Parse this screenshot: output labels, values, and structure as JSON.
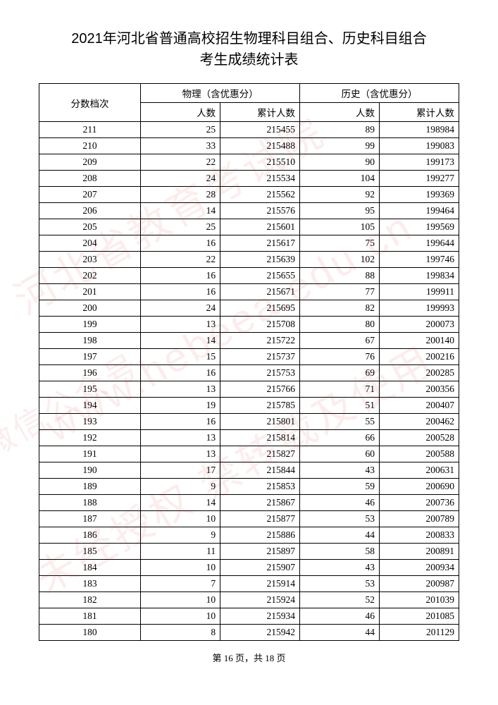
{
  "title_line1": "2021年河北省普通高校招生物理科目组合、历史科目组合",
  "title_line2": "考生成绩统计表",
  "header": {
    "score": "分数档次",
    "physics_group": "物理（含优惠分）",
    "history_group": "历史（含优惠分）",
    "count": "人数",
    "cum": "累计人数"
  },
  "rows": [
    {
      "score": "211",
      "p_n": "25",
      "p_c": "215455",
      "h_n": "89",
      "h_c": "198984"
    },
    {
      "score": "210",
      "p_n": "33",
      "p_c": "215488",
      "h_n": "99",
      "h_c": "199083"
    },
    {
      "score": "209",
      "p_n": "22",
      "p_c": "215510",
      "h_n": "90",
      "h_c": "199173"
    },
    {
      "score": "208",
      "p_n": "24",
      "p_c": "215534",
      "h_n": "104",
      "h_c": "199277"
    },
    {
      "score": "207",
      "p_n": "28",
      "p_c": "215562",
      "h_n": "92",
      "h_c": "199369"
    },
    {
      "score": "206",
      "p_n": "14",
      "p_c": "215576",
      "h_n": "95",
      "h_c": "199464"
    },
    {
      "score": "205",
      "p_n": "25",
      "p_c": "215601",
      "h_n": "105",
      "h_c": "199569"
    },
    {
      "score": "204",
      "p_n": "16",
      "p_c": "215617",
      "h_n": "75",
      "h_c": "199644"
    },
    {
      "score": "203",
      "p_n": "22",
      "p_c": "215639",
      "h_n": "102",
      "h_c": "199746"
    },
    {
      "score": "202",
      "p_n": "16",
      "p_c": "215655",
      "h_n": "88",
      "h_c": "199834"
    },
    {
      "score": "201",
      "p_n": "16",
      "p_c": "215671",
      "h_n": "77",
      "h_c": "199911"
    },
    {
      "score": "200",
      "p_n": "24",
      "p_c": "215695",
      "h_n": "82",
      "h_c": "199993"
    },
    {
      "score": "199",
      "p_n": "13",
      "p_c": "215708",
      "h_n": "80",
      "h_c": "200073"
    },
    {
      "score": "198",
      "p_n": "14",
      "p_c": "215722",
      "h_n": "67",
      "h_c": "200140"
    },
    {
      "score": "197",
      "p_n": "15",
      "p_c": "215737",
      "h_n": "76",
      "h_c": "200216"
    },
    {
      "score": "196",
      "p_n": "16",
      "p_c": "215753",
      "h_n": "69",
      "h_c": "200285"
    },
    {
      "score": "195",
      "p_n": "13",
      "p_c": "215766",
      "h_n": "71",
      "h_c": "200356"
    },
    {
      "score": "194",
      "p_n": "19",
      "p_c": "215785",
      "h_n": "51",
      "h_c": "200407"
    },
    {
      "score": "193",
      "p_n": "16",
      "p_c": "215801",
      "h_n": "55",
      "h_c": "200462"
    },
    {
      "score": "192",
      "p_n": "13",
      "p_c": "215814",
      "h_n": "66",
      "h_c": "200528"
    },
    {
      "score": "191",
      "p_n": "13",
      "p_c": "215827",
      "h_n": "60",
      "h_c": "200588"
    },
    {
      "score": "190",
      "p_n": "17",
      "p_c": "215844",
      "h_n": "43",
      "h_c": "200631"
    },
    {
      "score": "189",
      "p_n": "9",
      "p_c": "215853",
      "h_n": "59",
      "h_c": "200690"
    },
    {
      "score": "188",
      "p_n": "14",
      "p_c": "215867",
      "h_n": "46",
      "h_c": "200736"
    },
    {
      "score": "187",
      "p_n": "10",
      "p_c": "215877",
      "h_n": "53",
      "h_c": "200789"
    },
    {
      "score": "186",
      "p_n": "9",
      "p_c": "215886",
      "h_n": "44",
      "h_c": "200833"
    },
    {
      "score": "185",
      "p_n": "11",
      "p_c": "215897",
      "h_n": "58",
      "h_c": "200891"
    },
    {
      "score": "184",
      "p_n": "10",
      "p_c": "215907",
      "h_n": "43",
      "h_c": "200934"
    },
    {
      "score": "183",
      "p_n": "7",
      "p_c": "215914",
      "h_n": "53",
      "h_c": "200987"
    },
    {
      "score": "182",
      "p_n": "10",
      "p_c": "215924",
      "h_n": "52",
      "h_c": "201039"
    },
    {
      "score": "181",
      "p_n": "10",
      "p_c": "215934",
      "h_n": "46",
      "h_c": "201085"
    },
    {
      "score": "180",
      "p_n": "8",
      "p_c": "215942",
      "h_n": "44",
      "h_c": "201129"
    }
  ],
  "footer": "第 16 页，共 18 页",
  "watermarks": [
    "河北省教育考试院",
    "www.hebeea.edu.cn",
    "未经授权 禁转载及使用",
    "微信公众号"
  ]
}
